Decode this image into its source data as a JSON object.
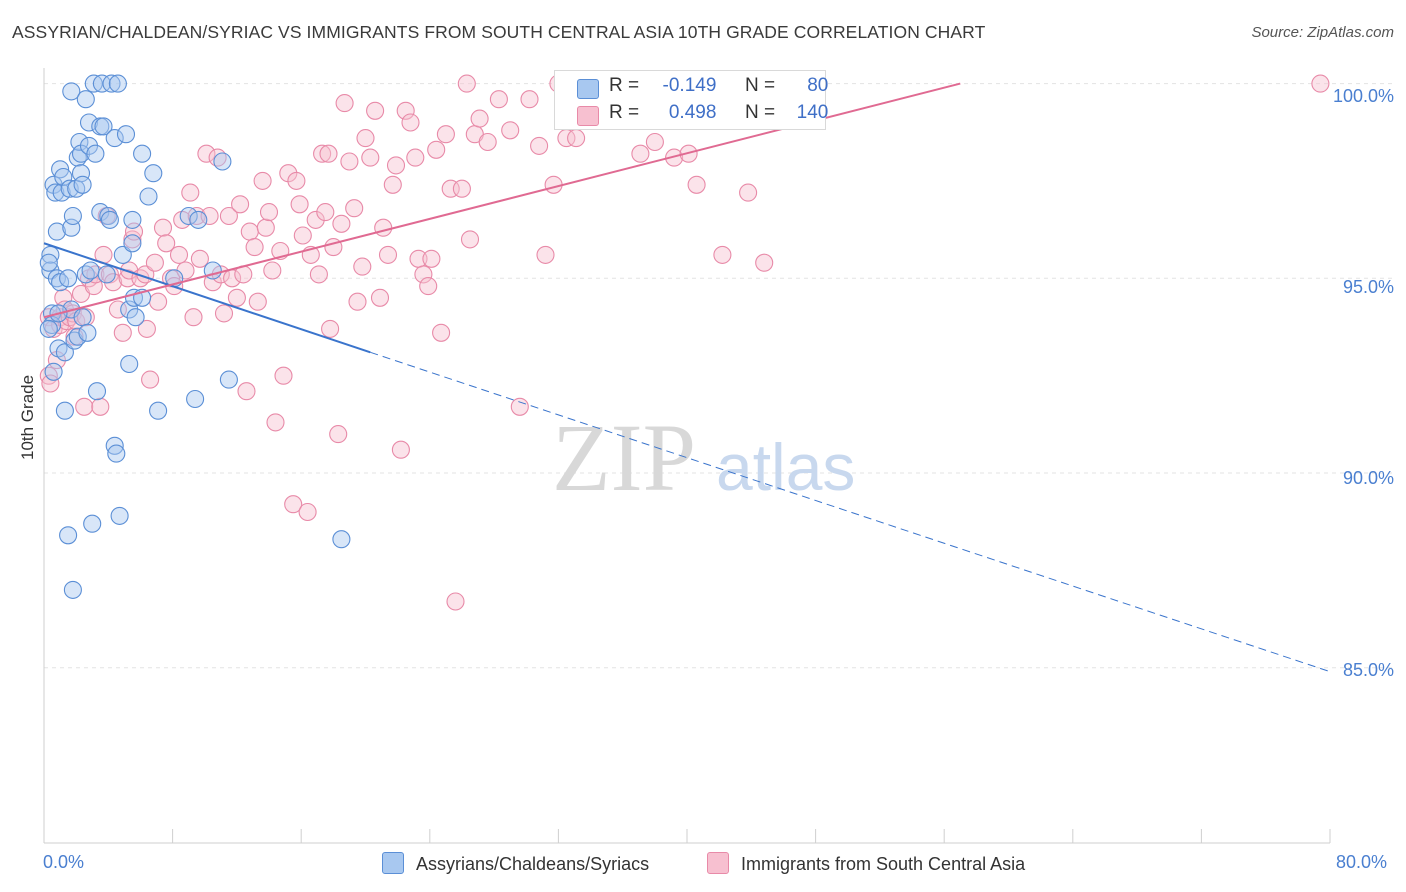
{
  "header": {
    "title": "ASSYRIAN/CHALDEAN/SYRIAC VS IMMIGRANTS FROM SOUTH CENTRAL ASIA 10TH GRADE CORRELATION CHART",
    "source": "Source: ZipAtlas.com"
  },
  "watermark": {
    "zip": "ZIP",
    "atlas": "atlas"
  },
  "legend_top": {
    "r_label": "R =",
    "n_label": "N =",
    "series1": {
      "r": "-0.149",
      "n": "80"
    },
    "series2": {
      "r": "0.498",
      "n": "140"
    }
  },
  "legend_bottom": {
    "series1": "Assyrians/Chaldeans/Syriacs",
    "series2": "Immigrants from South Central Asia"
  },
  "colors": {
    "series1_fill": "#a8c8f0",
    "series1_stroke": "#5b8fd6",
    "series1_line": "#3a74cc",
    "series2_fill": "#f7c0d0",
    "series2_stroke": "#e88aa8",
    "series2_line": "#e06a92",
    "tick_text": "#4a7fd0",
    "grid": "#e3e3e3"
  },
  "chart_data": {
    "type": "scatter",
    "title": "ASSYRIAN/CHALDEAN/SYRIAC VS IMMIGRANTS FROM SOUTH CENTRAL ASIA 10TH GRADE CORRELATION CHART",
    "xlabel": "",
    "ylabel": "10th Grade",
    "xlim": [
      0,
      80
    ],
    "ylim": [
      80.5,
      100.4
    ],
    "x_tick_labels": [
      "0.0%",
      "80.0%"
    ],
    "y_tick_labels": [
      "100.0%",
      "95.0%",
      "90.0%",
      "85.0%"
    ],
    "y_ticks": [
      100,
      95,
      90,
      85
    ],
    "grid": true,
    "legend_position": "top-center",
    "series": [
      {
        "name": "Assyrians/Chaldeans/Syriacs",
        "r": -0.149,
        "n": 80,
        "trend": {
          "x": [
            0,
            20.3
          ],
          "y": [
            95.9,
            93.1
          ],
          "dashed_to": [
            80,
            84.9
          ]
        },
        "points": [
          [
            0.4,
            95.6
          ],
          [
            0.4,
            95.2
          ],
          [
            0.5,
            94.1
          ],
          [
            0.5,
            93.8
          ],
          [
            0.6,
            97.4
          ],
          [
            0.6,
            92.6
          ],
          [
            0.7,
            97.2
          ],
          [
            0.8,
            96.2
          ],
          [
            0.8,
            95.0
          ],
          [
            0.9,
            93.2
          ],
          [
            1.0,
            97.8
          ],
          [
            1.0,
            94.9
          ],
          [
            1.1,
            97.2
          ],
          [
            1.2,
            97.6
          ],
          [
            1.3,
            93.1
          ],
          [
            1.3,
            91.6
          ],
          [
            1.5,
            95.0
          ],
          [
            1.5,
            88.4
          ],
          [
            1.6,
            97.3
          ],
          [
            1.7,
            94.2
          ],
          [
            1.7,
            96.3
          ],
          [
            1.7,
            99.8
          ],
          [
            1.8,
            96.6
          ],
          [
            1.8,
            87.0
          ],
          [
            1.9,
            93.4
          ],
          [
            2.0,
            97.3
          ],
          [
            2.1,
            98.1
          ],
          [
            2.1,
            93.5
          ],
          [
            2.2,
            98.5
          ],
          [
            2.3,
            98.2
          ],
          [
            2.3,
            97.7
          ],
          [
            2.4,
            97.4
          ],
          [
            2.4,
            94.0
          ],
          [
            2.6,
            99.6
          ],
          [
            2.6,
            95.1
          ],
          [
            2.7,
            93.6
          ],
          [
            2.8,
            98.4
          ],
          [
            2.8,
            99.0
          ],
          [
            2.9,
            95.2
          ],
          [
            3.0,
            88.7
          ],
          [
            3.1,
            100.0
          ],
          [
            3.2,
            98.2
          ],
          [
            3.3,
            92.1
          ],
          [
            3.5,
            96.7
          ],
          [
            3.5,
            98.9
          ],
          [
            3.6,
            100.0
          ],
          [
            3.7,
            98.9
          ],
          [
            3.9,
            95.1
          ],
          [
            4.0,
            96.6
          ],
          [
            4.1,
            96.5
          ],
          [
            4.2,
            100.0
          ],
          [
            4.4,
            98.6
          ],
          [
            4.4,
            90.7
          ],
          [
            4.5,
            90.5
          ],
          [
            4.6,
            100.0
          ],
          [
            4.7,
            88.9
          ],
          [
            4.9,
            95.6
          ],
          [
            5.1,
            98.7
          ],
          [
            5.3,
            94.2
          ],
          [
            5.3,
            92.8
          ],
          [
            5.5,
            96.5
          ],
          [
            5.5,
            95.9
          ],
          [
            5.6,
            94.5
          ],
          [
            5.7,
            94.0
          ],
          [
            6.1,
            98.2
          ],
          [
            6.1,
            94.5
          ],
          [
            6.5,
            97.1
          ],
          [
            6.8,
            97.7
          ],
          [
            7.1,
            91.6
          ],
          [
            8.1,
            95.0
          ],
          [
            9.4,
            91.9
          ],
          [
            9.0,
            96.6
          ],
          [
            9.6,
            96.5
          ],
          [
            10.5,
            95.2
          ],
          [
            11.1,
            98.0
          ],
          [
            11.5,
            92.4
          ],
          [
            18.5,
            88.3
          ],
          [
            0.3,
            95.4
          ],
          [
            0.9,
            94.1
          ],
          [
            0.3,
            93.7
          ]
        ]
      },
      {
        "name": "Immigrants from South Central Asia",
        "r": 0.498,
        "n": 140,
        "trend": {
          "x": [
            0,
            57
          ],
          "y": [
            94.0,
            100.0
          ]
        },
        "points": [
          [
            0.3,
            92.5
          ],
          [
            0.3,
            94.0
          ],
          [
            0.4,
            92.3
          ],
          [
            0.6,
            93.7
          ],
          [
            0.8,
            92.9
          ],
          [
            1.0,
            94.0
          ],
          [
            1.0,
            93.8
          ],
          [
            1.2,
            94.5
          ],
          [
            1.3,
            94.2
          ],
          [
            1.4,
            93.9
          ],
          [
            1.6,
            94.0
          ],
          [
            1.8,
            94.1
          ],
          [
            1.9,
            93.5
          ],
          [
            2.0,
            93.9
          ],
          [
            2.3,
            94.6
          ],
          [
            2.5,
            91.7
          ],
          [
            2.6,
            94.0
          ],
          [
            2.8,
            95.0
          ],
          [
            3.1,
            94.8
          ],
          [
            3.2,
            95.1
          ],
          [
            3.5,
            91.7
          ],
          [
            3.7,
            95.6
          ],
          [
            3.9,
            96.6
          ],
          [
            4.1,
            95.1
          ],
          [
            4.3,
            94.9
          ],
          [
            4.6,
            94.2
          ],
          [
            4.9,
            93.6
          ],
          [
            5.2,
            95.0
          ],
          [
            5.3,
            95.2
          ],
          [
            5.5,
            96.0
          ],
          [
            5.6,
            96.2
          ],
          [
            6.0,
            95.0
          ],
          [
            6.3,
            95.1
          ],
          [
            6.4,
            93.7
          ],
          [
            6.6,
            92.4
          ],
          [
            6.9,
            95.4
          ],
          [
            7.1,
            94.4
          ],
          [
            7.4,
            96.3
          ],
          [
            7.6,
            95.9
          ],
          [
            7.9,
            95.0
          ],
          [
            8.1,
            94.8
          ],
          [
            8.4,
            95.6
          ],
          [
            8.6,
            96.5
          ],
          [
            8.8,
            95.2
          ],
          [
            9.1,
            97.2
          ],
          [
            9.3,
            94.0
          ],
          [
            9.5,
            96.6
          ],
          [
            9.7,
            95.5
          ],
          [
            10.1,
            98.2
          ],
          [
            10.3,
            96.6
          ],
          [
            10.5,
            94.9
          ],
          [
            10.8,
            98.1
          ],
          [
            11.0,
            95.1
          ],
          [
            11.2,
            94.1
          ],
          [
            11.5,
            96.6
          ],
          [
            11.7,
            95.0
          ],
          [
            12.0,
            94.5
          ],
          [
            12.2,
            96.9
          ],
          [
            12.4,
            95.1
          ],
          [
            12.6,
            92.1
          ],
          [
            12.8,
            96.2
          ],
          [
            13.1,
            95.8
          ],
          [
            13.3,
            94.4
          ],
          [
            13.6,
            97.5
          ],
          [
            13.8,
            96.3
          ],
          [
            14.0,
            96.7
          ],
          [
            14.2,
            95.2
          ],
          [
            14.4,
            91.3
          ],
          [
            14.7,
            95.7
          ],
          [
            14.9,
            92.5
          ],
          [
            15.2,
            97.7
          ],
          [
            15.5,
            89.2
          ],
          [
            15.7,
            97.5
          ],
          [
            15.9,
            96.9
          ],
          [
            16.1,
            96.1
          ],
          [
            16.4,
            89.0
          ],
          [
            16.6,
            95.6
          ],
          [
            16.9,
            96.5
          ],
          [
            17.1,
            95.1
          ],
          [
            17.3,
            98.2
          ],
          [
            17.5,
            96.7
          ],
          [
            17.7,
            98.2
          ],
          [
            17.8,
            93.7
          ],
          [
            18.0,
            95.8
          ],
          [
            18.3,
            91.0
          ],
          [
            18.5,
            96.4
          ],
          [
            18.7,
            99.5
          ],
          [
            19.0,
            98.0
          ],
          [
            19.3,
            96.8
          ],
          [
            19.5,
            94.4
          ],
          [
            19.8,
            95.3
          ],
          [
            20.0,
            98.6
          ],
          [
            20.3,
            98.1
          ],
          [
            20.6,
            99.3
          ],
          [
            20.9,
            94.5
          ],
          [
            21.1,
            96.3
          ],
          [
            21.4,
            95.6
          ],
          [
            21.7,
            97.4
          ],
          [
            21.9,
            97.9
          ],
          [
            22.2,
            90.6
          ],
          [
            22.5,
            99.3
          ],
          [
            22.8,
            99.0
          ],
          [
            23.1,
            98.1
          ],
          [
            23.3,
            95.5
          ],
          [
            23.6,
            95.1
          ],
          [
            23.9,
            94.8
          ],
          [
            24.1,
            95.5
          ],
          [
            24.4,
            98.3
          ],
          [
            24.7,
            93.6
          ],
          [
            25.0,
            98.7
          ],
          [
            25.3,
            97.3
          ],
          [
            25.6,
            86.7
          ],
          [
            26.0,
            97.3
          ],
          [
            26.3,
            100.0
          ],
          [
            26.5,
            96.0
          ],
          [
            26.8,
            98.7
          ],
          [
            27.1,
            99.1
          ],
          [
            27.6,
            98.5
          ],
          [
            28.3,
            99.6
          ],
          [
            29.0,
            98.8
          ],
          [
            29.6,
            91.7
          ],
          [
            30.2,
            99.6
          ],
          [
            30.8,
            98.4
          ],
          [
            31.2,
            95.6
          ],
          [
            31.7,
            97.4
          ],
          [
            32.0,
            100.0
          ],
          [
            32.5,
            98.6
          ],
          [
            33.1,
            98.6
          ],
          [
            34.2,
            100.0
          ],
          [
            35.0,
            99.6
          ],
          [
            36.4,
            100.0
          ],
          [
            37.1,
            98.2
          ],
          [
            38.0,
            98.5
          ],
          [
            39.2,
            98.1
          ],
          [
            40.1,
            98.2
          ],
          [
            40.6,
            97.4
          ],
          [
            42.2,
            95.6
          ],
          [
            43.8,
            97.2
          ],
          [
            44.8,
            95.4
          ],
          [
            79.4,
            100.0
          ]
        ]
      }
    ]
  }
}
